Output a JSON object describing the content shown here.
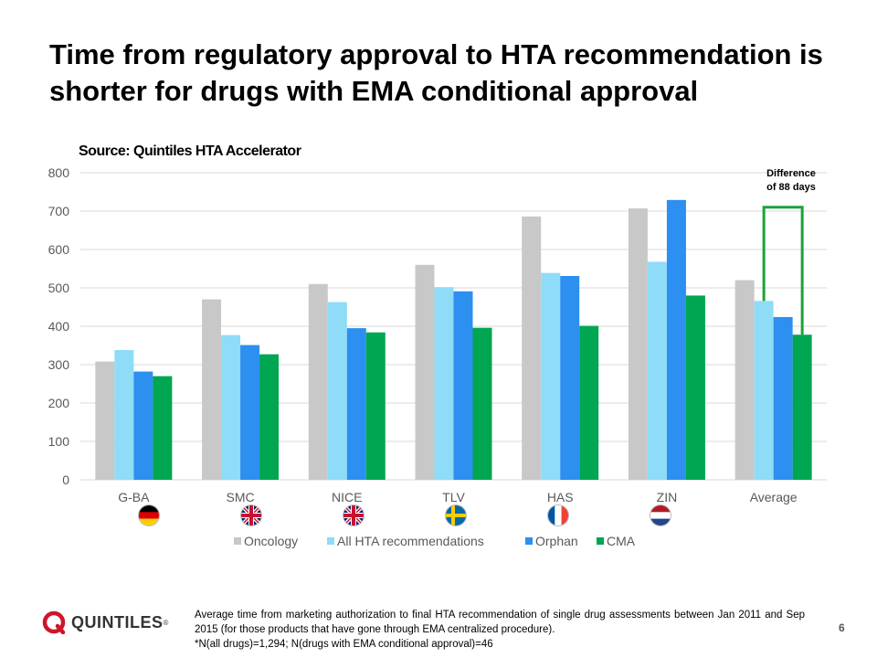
{
  "slide": {
    "title": "Time from regulatory approval to HTA recommendation is shorter for drugs with EMA conditional approval",
    "source": "Source: Quintiles HTA Accelerator",
    "footnote_line1": "Average time from marketing authorization to final HTA recommendation of single drug assessments between Jan 2011 and Sep 2015 (for those products that have gone through EMA centralized procedure).",
    "footnote_line2": "*N(all drugs)=1,294; N(drugs with EMA conditional approval)=46",
    "page_number": "6",
    "logo_text": "QUINTILES",
    "logo_reg": "®"
  },
  "flags": [
    "germany-flag-icon",
    "uk-flag-icon",
    "uk-flag-icon",
    "sweden-flag-icon",
    "france-flag-icon",
    "netherlands-flag-icon"
  ],
  "chart_data": {
    "type": "bar",
    "categories": [
      "G-BA",
      "SMC",
      "NICE",
      "TLV",
      "HAS",
      "ZIN",
      "Average"
    ],
    "series": [
      {
        "name": "Oncology",
        "color": "#c8c8c8",
        "values": [
          308,
          470,
          510,
          560,
          686,
          707,
          520
        ]
      },
      {
        "name": "All HTA recommendations",
        "color": "#8fdcf8",
        "values": [
          338,
          377,
          463,
          502,
          539,
          568,
          466
        ]
      },
      {
        "name": "Orphan",
        "color": "#2d8fef",
        "values": [
          282,
          351,
          395,
          491,
          531,
          729,
          424
        ]
      },
      {
        "name": "CMA",
        "color": "#00a651",
        "values": [
          270,
          327,
          384,
          396,
          401,
          480,
          378
        ]
      }
    ],
    "ylim": [
      0,
      800
    ],
    "yticks": [
      0,
      100,
      200,
      300,
      400,
      500,
      600,
      700,
      800
    ],
    "grid": true,
    "legend": "bottom",
    "annotation": {
      "line1": "Difference",
      "line2": "of 88 days",
      "bracket_top_value": 710,
      "bracket_color": "#1aa33a"
    }
  }
}
